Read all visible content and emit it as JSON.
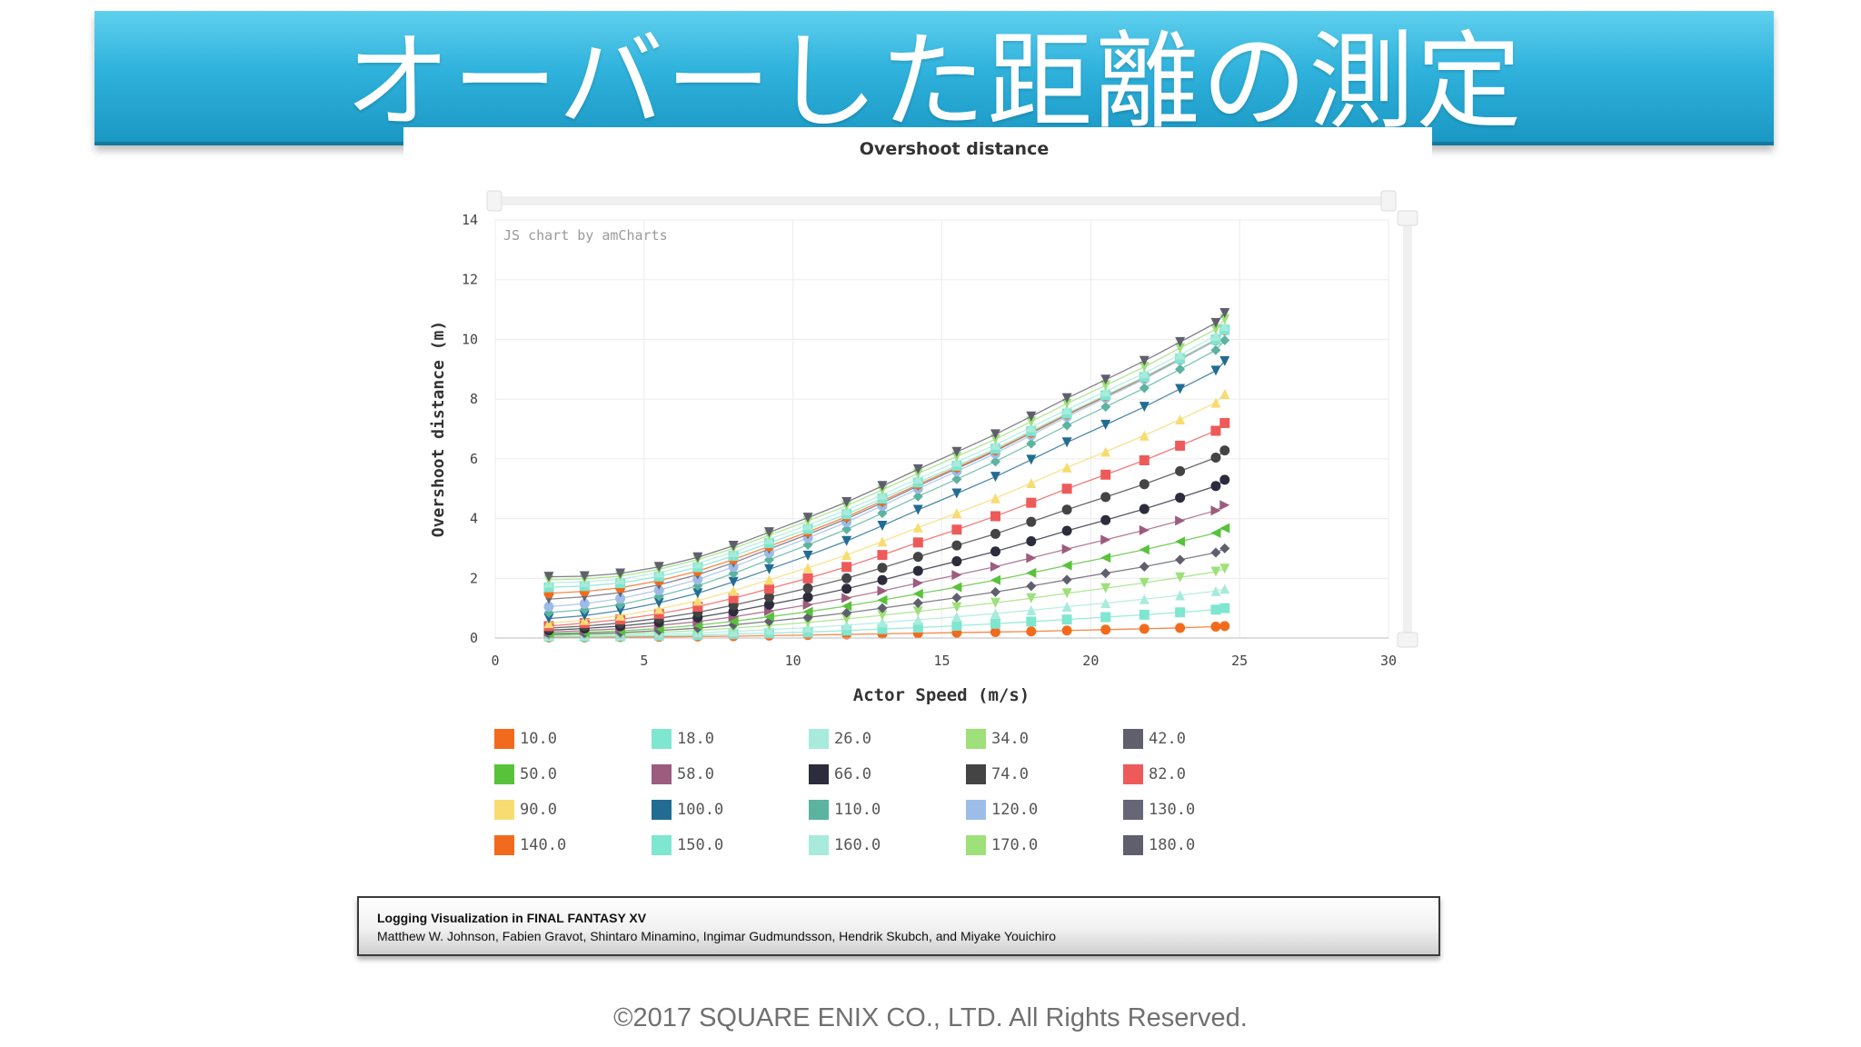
{
  "slide": {
    "title": "オーバーした距離の測定",
    "credit_title": "Logging Visualization in FINAL FANTASY XV",
    "credit_authors": "Matthew W. Johnson, Fabien Gravot, Shintaro Minamino, Ingimar Gudmundsson, Hendrik Skubch, and Miyake Youichiro",
    "copyright": "©2017 SQUARE ENIX CO., LTD. All Rights Reserved."
  },
  "chart_data": {
    "type": "scatter",
    "title": "Overshoot distance",
    "watermark": "JS chart by amCharts",
    "xlabel": "Actor Speed (m/s)",
    "ylabel": "Overshoot distance (m)",
    "xlim": [
      0,
      30
    ],
    "ylim": [
      0,
      14
    ],
    "xticks": [
      0,
      5,
      10,
      15,
      20,
      25,
      30
    ],
    "yticks": [
      0,
      2,
      4,
      6,
      8,
      10,
      12,
      14
    ],
    "x": [
      1.8,
      3.0,
      4.2,
      5.5,
      6.8,
      8.0,
      9.2,
      10.5,
      11.8,
      13.0,
      14.2,
      15.5,
      16.8,
      18.0,
      19.2,
      20.5,
      21.8,
      23.0,
      24.2,
      24.5
    ],
    "series": [
      {
        "name": "10.0",
        "color": "#f26b1d",
        "marker": "circle",
        "values": [
          0.02,
          0.02,
          0.03,
          0.04,
          0.05,
          0.06,
          0.08,
          0.1,
          0.12,
          0.14,
          0.16,
          0.18,
          0.2,
          0.22,
          0.25,
          0.28,
          0.31,
          0.34,
          0.38,
          0.4
        ]
      },
      {
        "name": "18.0",
        "color": "#7fe6cf",
        "marker": "square",
        "values": [
          0.05,
          0.05,
          0.06,
          0.08,
          0.1,
          0.13,
          0.16,
          0.2,
          0.25,
          0.3,
          0.35,
          0.41,
          0.48,
          0.55,
          0.62,
          0.7,
          0.78,
          0.86,
          0.95,
          1.0
        ]
      },
      {
        "name": "26.0",
        "color": "#a8ebdc",
        "marker": "triangle",
        "values": [
          0.08,
          0.09,
          0.1,
          0.13,
          0.17,
          0.22,
          0.28,
          0.35,
          0.43,
          0.52,
          0.61,
          0.71,
          0.82,
          0.93,
          1.05,
          1.17,
          1.3,
          1.43,
          1.57,
          1.65
        ]
      },
      {
        "name": "34.0",
        "color": "#9ee07a",
        "marker": "triangle-down",
        "values": [
          0.1,
          0.12,
          0.14,
          0.19,
          0.25,
          0.33,
          0.42,
          0.52,
          0.64,
          0.76,
          0.89,
          1.03,
          1.18,
          1.33,
          1.5,
          1.67,
          1.85,
          2.03,
          2.22,
          2.32
        ]
      },
      {
        "name": "42.0",
        "color": "#5f5f6e",
        "marker": "diamond",
        "values": [
          0.12,
          0.15,
          0.18,
          0.25,
          0.33,
          0.44,
          0.56,
          0.69,
          0.84,
          1.0,
          1.17,
          1.35,
          1.54,
          1.74,
          1.95,
          2.17,
          2.39,
          2.62,
          2.86,
          3.0
        ]
      },
      {
        "name": "50.0",
        "color": "#58c23a",
        "marker": "triangle-left",
        "values": [
          0.15,
          0.19,
          0.24,
          0.32,
          0.43,
          0.56,
          0.71,
          0.88,
          1.07,
          1.27,
          1.48,
          1.7,
          1.94,
          2.18,
          2.43,
          2.69,
          2.96,
          3.23,
          3.52,
          3.68
        ]
      },
      {
        "name": "58.0",
        "color": "#9c5c7e",
        "marker": "triangle-right",
        "values": [
          0.2,
          0.25,
          0.31,
          0.42,
          0.55,
          0.71,
          0.9,
          1.11,
          1.34,
          1.58,
          1.84,
          2.11,
          2.39,
          2.68,
          2.98,
          3.29,
          3.61,
          3.93,
          4.27,
          4.45
        ]
      },
      {
        "name": "66.0",
        "color": "#2c2c3c",
        "marker": "circle",
        "values": [
          0.26,
          0.32,
          0.4,
          0.53,
          0.69,
          0.89,
          1.12,
          1.37,
          1.65,
          1.94,
          2.25,
          2.57,
          2.9,
          3.24,
          3.59,
          3.95,
          4.32,
          4.7,
          5.09,
          5.3
        ]
      },
      {
        "name": "74.0",
        "color": "#444444",
        "marker": "circle",
        "values": [
          0.33,
          0.4,
          0.5,
          0.66,
          0.86,
          1.1,
          1.37,
          1.67,
          2.0,
          2.35,
          2.72,
          3.1,
          3.49,
          3.89,
          4.3,
          4.72,
          5.15,
          5.59,
          6.04,
          6.28
        ]
      },
      {
        "name": "82.0",
        "color": "#ee5a5a",
        "marker": "square",
        "values": [
          0.4,
          0.5,
          0.62,
          0.81,
          1.05,
          1.33,
          1.65,
          2.0,
          2.38,
          2.78,
          3.2,
          3.63,
          4.08,
          4.53,
          5.0,
          5.47,
          5.95,
          6.44,
          6.94,
          7.2
        ]
      },
      {
        "name": "90.0",
        "color": "#f8dc72",
        "marker": "triangle",
        "values": [
          0.5,
          0.6,
          0.75,
          0.97,
          1.25,
          1.58,
          1.95,
          2.35,
          2.78,
          3.23,
          3.7,
          4.18,
          4.68,
          5.19,
          5.71,
          6.24,
          6.78,
          7.32,
          7.88,
          8.17
        ]
      },
      {
        "name": "100.0",
        "color": "#226c94",
        "marker": "triangle-down",
        "values": [
          0.65,
          0.75,
          0.92,
          1.18,
          1.5,
          1.88,
          2.3,
          2.76,
          3.25,
          3.76,
          4.29,
          4.84,
          5.4,
          5.97,
          6.55,
          7.14,
          7.74,
          8.34,
          8.95,
          9.27
        ]
      },
      {
        "name": "110.0",
        "color": "#5bb3a0",
        "marker": "diamond",
        "values": [
          0.85,
          0.95,
          1.12,
          1.4,
          1.75,
          2.16,
          2.62,
          3.12,
          3.64,
          4.18,
          4.74,
          5.32,
          5.91,
          6.51,
          7.12,
          7.74,
          8.37,
          9.0,
          9.64,
          9.97
        ]
      },
      {
        "name": "120.0",
        "color": "#9dbde8",
        "marker": "circle",
        "values": [
          1.05,
          1.15,
          1.32,
          1.6,
          1.96,
          2.38,
          2.85,
          3.35,
          3.88,
          4.43,
          5.0,
          5.58,
          6.18,
          6.79,
          7.41,
          8.04,
          8.67,
          9.31,
          9.96,
          10.3
        ]
      },
      {
        "name": "130.0",
        "color": "#666677",
        "marker": "triangle-down",
        "values": [
          1.3,
          1.38,
          1.52,
          1.78,
          2.12,
          2.52,
          2.98,
          3.47,
          3.99,
          4.53,
          5.09,
          5.67,
          6.26,
          6.86,
          7.47,
          8.09,
          8.72,
          9.35,
          9.99,
          10.32
        ]
      },
      {
        "name": "140.0",
        "color": "#f26b1d",
        "marker": "circle",
        "values": [
          1.5,
          1.56,
          1.68,
          1.92,
          2.24,
          2.63,
          3.07,
          3.55,
          4.06,
          4.59,
          5.14,
          5.71,
          6.29,
          6.88,
          7.49,
          8.1,
          8.72,
          9.35,
          9.98,
          10.3
        ]
      },
      {
        "name": "150.0",
        "color": "#7fe6cf",
        "marker": "square",
        "values": [
          1.7,
          1.74,
          1.84,
          2.06,
          2.37,
          2.75,
          3.18,
          3.65,
          4.15,
          4.67,
          5.21,
          5.77,
          6.34,
          6.93,
          7.52,
          8.13,
          8.74,
          9.36,
          9.99,
          10.32
        ]
      },
      {
        "name": "160.0",
        "color": "#a8ebdc",
        "marker": "triangle",
        "values": [
          1.85,
          1.88,
          1.97,
          2.19,
          2.5,
          2.88,
          3.31,
          3.78,
          4.28,
          4.8,
          5.34,
          5.9,
          6.47,
          7.06,
          7.65,
          8.26,
          8.87,
          9.49,
          10.12,
          10.45
        ]
      },
      {
        "name": "170.0",
        "color": "#9ee07a",
        "marker": "triangle-down",
        "values": [
          1.95,
          1.98,
          2.07,
          2.3,
          2.62,
          3.0,
          3.44,
          3.92,
          4.43,
          4.96,
          5.51,
          6.08,
          6.66,
          7.25,
          7.85,
          8.46,
          9.08,
          9.71,
          10.34,
          10.68
        ]
      },
      {
        "name": "180.0",
        "color": "#5f5f6e",
        "marker": "triangle-down",
        "values": [
          2.05,
          2.07,
          2.16,
          2.38,
          2.7,
          3.09,
          3.54,
          4.03,
          4.55,
          5.09,
          5.65,
          6.23,
          6.82,
          7.42,
          8.03,
          8.65,
          9.28,
          9.91,
          10.55,
          10.88
        ]
      }
    ]
  }
}
